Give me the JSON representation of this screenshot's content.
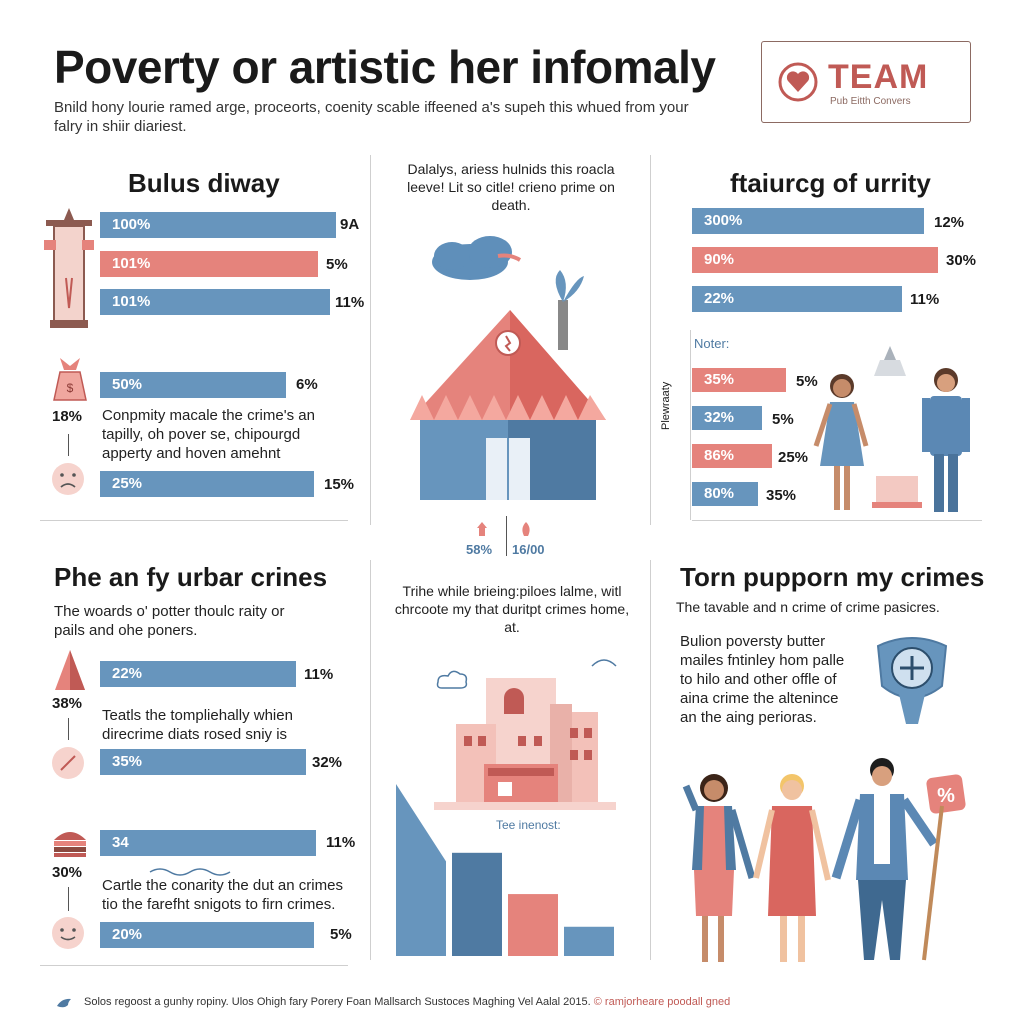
{
  "header": {
    "title": "Poverty or artistic her infomaly",
    "subtitle": "Bnild hony lourie ramed arge, proceorts, coenity scable iffeened a's supeh this whued from your falry in shiir diariest."
  },
  "logo": {
    "word": "TEAM",
    "sub": "Pub Eitth Convers"
  },
  "left_top": {
    "title": "Bulus diway",
    "bars": [
      {
        "label": "100%",
        "value": "9A",
        "color": "blue"
      },
      {
        "label": "101%",
        "value": "5%",
        "color": "red"
      },
      {
        "label": "101%",
        "value": "11%",
        "color": "blue"
      }
    ],
    "bar4": {
      "label": "50%",
      "value": "6%"
    },
    "side_pct": "18%",
    "paragraph": "Conpmity macale the crime's an tapilly, oh pover se, chipourgd apperty and hoven amehnt",
    "bar5": {
      "label": "25%",
      "value": "15%"
    }
  },
  "center_top": {
    "text": "Dalalys, ariess hulnids this roacla leeve! Lit so citle! crieno prime on death.",
    "stat_left": "58%",
    "stat_right": "16/00"
  },
  "right_top": {
    "title": "ftaiurcg of urrity",
    "bars": [
      {
        "label": "300%",
        "value": "12%",
        "color": "blue"
      },
      {
        "label": "90%",
        "value": "30%",
        "color": "red"
      },
      {
        "label": "22%",
        "value": "11%",
        "color": "blue"
      }
    ],
    "notes_label": "Noter:",
    "vertical_label": "Plewraaty",
    "small_bars": [
      {
        "label": "35%",
        "value": "5%",
        "color": "red"
      },
      {
        "label": "32%",
        "value": "5%",
        "color": "blue"
      },
      {
        "label": "86%",
        "value": "25%",
        "color": "red"
      },
      {
        "label": "80%",
        "value": "35%",
        "color": "blue"
      }
    ]
  },
  "left_bottom": {
    "title": "Phe an fy urbar crines",
    "intro": "The woards o' potter thoulc raity or pails and ohe poners.",
    "bar1": {
      "label": "22%",
      "value": "11%"
    },
    "side1": "38%",
    "para1": "Teatls the tompliehally whien direcrime diats rosed sniy is",
    "bar2": {
      "label": "35%",
      "value": "32%"
    },
    "bar3": {
      "label": "34",
      "value": "11%"
    },
    "side2": "30%",
    "para2": "Cartle the conarity the dut an crimes tio the farefht snigots to firn crimes.",
    "bar4": {
      "label": "20%",
      "value": "5%"
    }
  },
  "center_bottom": {
    "text": "Trihe while brieing:piloes lalme, witl chrcoote my that duritpt crimes home, at.",
    "caption": "Tee inenost:"
  },
  "right_bottom": {
    "title": "Torn pupporn my crimes",
    "intro": "The tavable and n crime of crime pasicres.",
    "paragraph": "Bulion poversty butter mailes fntinley hom palle to hilo and other offle of aina crime the altenince an the aing perioras.",
    "sign_symbol": "%"
  },
  "footer": {
    "text": "Solos regoost a gunhy ropiny. Ulos Ohigh fary Porery Foan Mallsarch Sustoces Maghing Vel Aalal 2015.",
    "accent": "© ramjorheare poodall gned"
  },
  "colors": {
    "blue": "#6795bd",
    "red": "#e5837c",
    "accent": "#c05a55"
  },
  "center_bottom_chart": {
    "values": [
      100,
      60,
      36,
      17
    ]
  }
}
